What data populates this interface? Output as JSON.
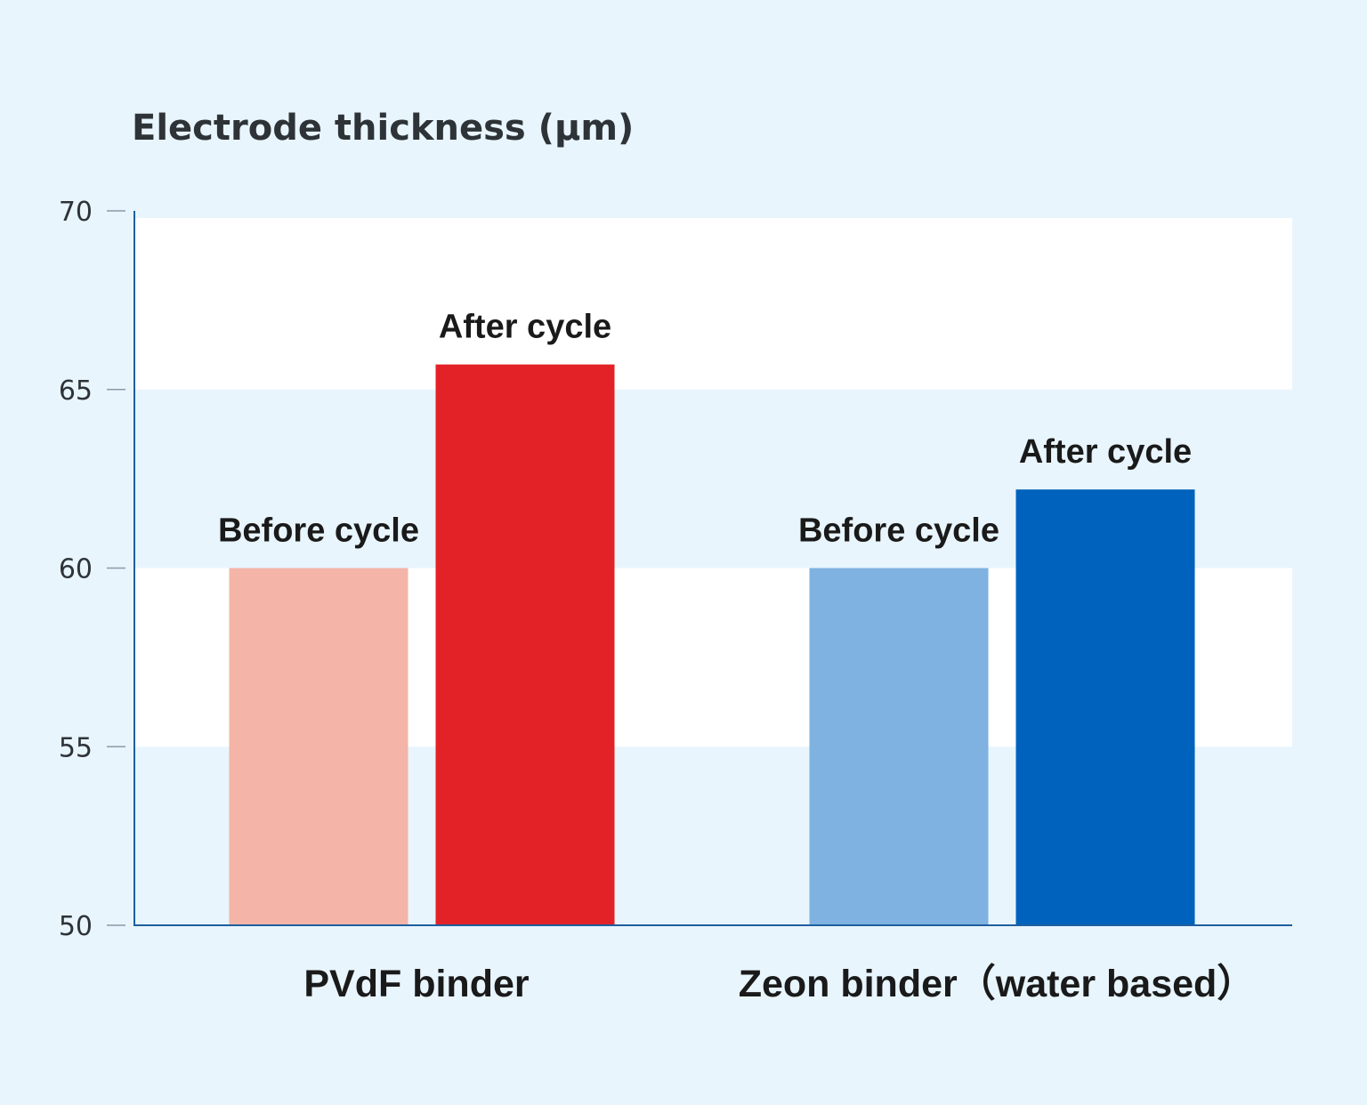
{
  "chart_data": {
    "type": "bar",
    "title": "",
    "ylabel": "Electrode thickness (µm)",
    "xlabel": "",
    "ylim": [
      50,
      70
    ],
    "yticks": [
      50,
      55,
      60,
      65,
      70
    ],
    "grid": "alternating bands",
    "legend": "none",
    "categories": [
      "PVdF binder",
      "Zeon binder（water based）"
    ],
    "series": [
      {
        "name": "Before cycle",
        "values": [
          60.0,
          60.0
        ],
        "colors": [
          "#f4b4a8",
          "#7fb2e0"
        ]
      },
      {
        "name": "After cycle",
        "values": [
          65.7,
          62.2
        ],
        "colors": [
          "#e32227",
          "#0062bd"
        ]
      }
    ],
    "bar_labels": [
      [
        "Before cycle",
        "After cycle"
      ],
      [
        "Before cycle",
        "After cycle"
      ]
    ],
    "colors": {
      "background": "#e8f5fd",
      "band": "#ffffff",
      "axis": "#1f5f9e"
    }
  }
}
